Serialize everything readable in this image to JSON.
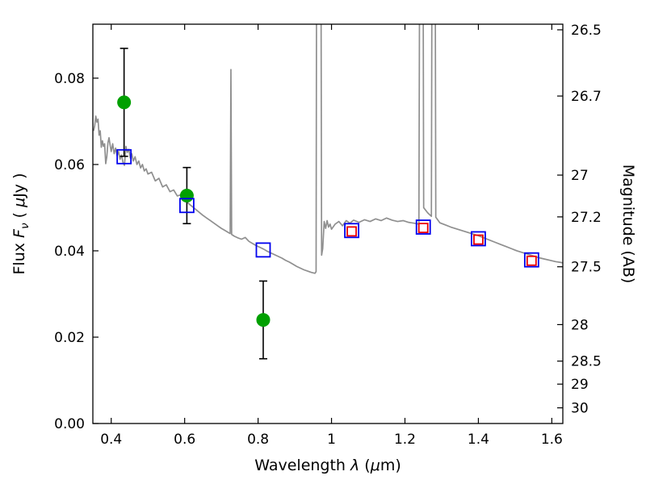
{
  "figure": {
    "background": "#ffffff"
  },
  "chart_data": {
    "type": "line",
    "title": "",
    "xlabel_text": "Wavelength λ (μm)",
    "xlabel_parts": [
      {
        "t": "Wavelength  ",
        "s": "n"
      },
      {
        "t": "λ",
        "s": "i"
      },
      {
        "t": " (",
        "s": "n"
      },
      {
        "t": "μ",
        "s": "i"
      },
      {
        "t": "m)",
        "s": "n"
      }
    ],
    "ylabel_left_text": "Flux Fν ( μJy )",
    "ylabel_left_parts": [
      {
        "t": "Flux  ",
        "s": "n"
      },
      {
        "t": "F",
        "s": "i"
      },
      {
        "t": "ν",
        "s": "isub"
      },
      {
        "t": "  ( ",
        "s": "n"
      },
      {
        "t": "μ",
        "s": "i"
      },
      {
        "t": "Jy )",
        "s": "n"
      }
    ],
    "ylabel_right": "Magnitude (AB)",
    "xlim": [
      0.35,
      1.63
    ],
    "ylim": [
      0,
      0.0925
    ],
    "x_ticks": [
      0.4,
      0.6,
      0.8,
      1.0,
      1.2,
      1.4,
      1.6
    ],
    "x_tick_labels": [
      "0.4",
      "0.6",
      "0.8",
      "1",
      "1.2",
      "1.4",
      "1.6"
    ],
    "y_ticks_left": [
      0.0,
      0.02,
      0.04,
      0.06,
      0.08
    ],
    "y_tick_labels_left": [
      "0.00",
      "0.02",
      "0.04",
      "0.06",
      "0.08"
    ],
    "y_ticks_right_mag": [
      26.5,
      26.7,
      27,
      27.2,
      27.5,
      28,
      28.5,
      29,
      30
    ],
    "y_tick_labels_right": [
      "26.5",
      "26.7",
      "27",
      "27.2",
      "27.5",
      "28",
      "28.5",
      "29",
      "30"
    ],
    "mag_zeropoint_ab_ujy": 23.9,
    "grid": false,
    "legend": "none",
    "colors": {
      "spectrum": "#8f8f8f",
      "observed": "#00a000",
      "model_blue": "#0000ee",
      "model_red": "#ee0000",
      "errorbar": "#000000",
      "axes": "#000000"
    },
    "series": [
      {
        "name": "model-spectrum",
        "type": "line",
        "color": "#8f8f8f",
        "linewidth": 1.7,
        "x": [
          0.352,
          0.355,
          0.358,
          0.361,
          0.364,
          0.367,
          0.37,
          0.373,
          0.376,
          0.379,
          0.382,
          0.385,
          0.388,
          0.391,
          0.394,
          0.397,
          0.4,
          0.404,
          0.408,
          0.412,
          0.416,
          0.42,
          0.424,
          0.428,
          0.432,
          0.436,
          0.44,
          0.444,
          0.448,
          0.452,
          0.456,
          0.46,
          0.465,
          0.47,
          0.475,
          0.48,
          0.485,
          0.49,
          0.495,
          0.5,
          0.51,
          0.52,
          0.53,
          0.54,
          0.55,
          0.56,
          0.57,
          0.58,
          0.59,
          0.6,
          0.61,
          0.62,
          0.63,
          0.64,
          0.65,
          0.66,
          0.67,
          0.68,
          0.69,
          0.7,
          0.71,
          0.72,
          0.724,
          0.726,
          0.728,
          0.735,
          0.745,
          0.755,
          0.765,
          0.775,
          0.785,
          0.795,
          0.805,
          0.815,
          0.825,
          0.835,
          0.845,
          0.855,
          0.865,
          0.875,
          0.885,
          0.895,
          0.905,
          0.915,
          0.925,
          0.935,
          0.945,
          0.955,
          0.958,
          0.961,
          0.969,
          0.973,
          0.976,
          0.98,
          0.984,
          0.988,
          0.992,
          0.996,
          1.0,
          1.01,
          1.02,
          1.03,
          1.04,
          1.05,
          1.06,
          1.075,
          1.09,
          1.105,
          1.12,
          1.135,
          1.15,
          1.165,
          1.18,
          1.195,
          1.21,
          1.225,
          1.238,
          1.243,
          1.247,
          1.251,
          1.262,
          1.272,
          1.276,
          1.28,
          1.284,
          1.295,
          1.31,
          1.325,
          1.34,
          1.355,
          1.37,
          1.385,
          1.4,
          1.415,
          1.43,
          1.445,
          1.46,
          1.475,
          1.49,
          1.505,
          1.52,
          1.535,
          1.55,
          1.565,
          1.58,
          1.595,
          1.61,
          1.625,
          1.63
        ],
        "y": [
          0.0678,
          0.069,
          0.0712,
          0.0698,
          0.0705,
          0.0668,
          0.0678,
          0.064,
          0.0655,
          0.0642,
          0.0648,
          0.0602,
          0.0618,
          0.065,
          0.0662,
          0.0645,
          0.063,
          0.0648,
          0.0625,
          0.0638,
          0.062,
          0.063,
          0.0612,
          0.0622,
          0.0605,
          0.0598,
          0.0642,
          0.0628,
          0.0635,
          0.0615,
          0.0625,
          0.0608,
          0.0618,
          0.06,
          0.0608,
          0.0592,
          0.06,
          0.0585,
          0.059,
          0.0578,
          0.0582,
          0.0562,
          0.0568,
          0.0548,
          0.0553,
          0.0537,
          0.0541,
          0.0527,
          0.053,
          0.0517,
          0.051,
          0.0503,
          0.0496,
          0.0489,
          0.0482,
          0.0476,
          0.047,
          0.0464,
          0.0458,
          0.0452,
          0.0447,
          0.0442,
          0.044,
          0.082,
          0.0438,
          0.0434,
          0.043,
          0.0427,
          0.0431,
          0.0422,
          0.0417,
          0.0412,
          0.0408,
          0.0404,
          0.0399,
          0.0395,
          0.0391,
          0.0387,
          0.0383,
          0.0378,
          0.0374,
          0.0369,
          0.0364,
          0.036,
          0.0356,
          0.0353,
          0.035,
          0.0348,
          0.0352,
          0.2,
          0.2,
          0.039,
          0.0405,
          0.0468,
          0.0452,
          0.047,
          0.0455,
          0.0462,
          0.045,
          0.0462,
          0.0468,
          0.0458,
          0.047,
          0.0464,
          0.0471,
          0.0466,
          0.0472,
          0.0468,
          0.0474,
          0.047,
          0.0476,
          0.0471,
          0.0468,
          0.047,
          0.0466,
          0.0464,
          0.0462,
          0.2,
          0.2,
          0.05,
          0.0488,
          0.048,
          0.2,
          0.2,
          0.0478,
          0.0465,
          0.046,
          0.0455,
          0.0451,
          0.0447,
          0.0443,
          0.0439,
          0.0435,
          0.043,
          0.0425,
          0.042,
          0.0415,
          0.041,
          0.0405,
          0.04,
          0.0396,
          0.0392,
          0.0388,
          0.0384,
          0.0381,
          0.0378,
          0.0375,
          0.0373,
          0.0372
        ]
      },
      {
        "name": "observed-photometry",
        "type": "scatter",
        "marker": "circle",
        "color": "#00a000",
        "marker_radius": 8,
        "points": [
          {
            "x": 0.435,
            "y": 0.0744,
            "yerr": 0.0125
          },
          {
            "x": 0.606,
            "y": 0.0528,
            "yerr": 0.0065
          },
          {
            "x": 0.814,
            "y": 0.024,
            "yerr": 0.009
          }
        ]
      },
      {
        "name": "model-photometry-blue",
        "type": "scatter",
        "marker": "open-square",
        "color": "#0000ee",
        "size": 17,
        "points": [
          {
            "x": 0.435,
            "y": 0.0618
          },
          {
            "x": 0.606,
            "y": 0.0505
          },
          {
            "x": 0.814,
            "y": 0.0402
          },
          {
            "x": 1.055,
            "y": 0.0447
          },
          {
            "x": 1.25,
            "y": 0.0455
          },
          {
            "x": 1.4,
            "y": 0.0428
          },
          {
            "x": 1.545,
            "y": 0.0379
          }
        ]
      },
      {
        "name": "model-photometry-red",
        "type": "scatter",
        "marker": "open-square",
        "color": "#ee0000",
        "size": 11,
        "points": [
          {
            "x": 1.055,
            "y": 0.0445
          },
          {
            "x": 1.25,
            "y": 0.0453
          },
          {
            "x": 1.4,
            "y": 0.0426
          },
          {
            "x": 1.545,
            "y": 0.0377
          }
        ]
      }
    ]
  }
}
